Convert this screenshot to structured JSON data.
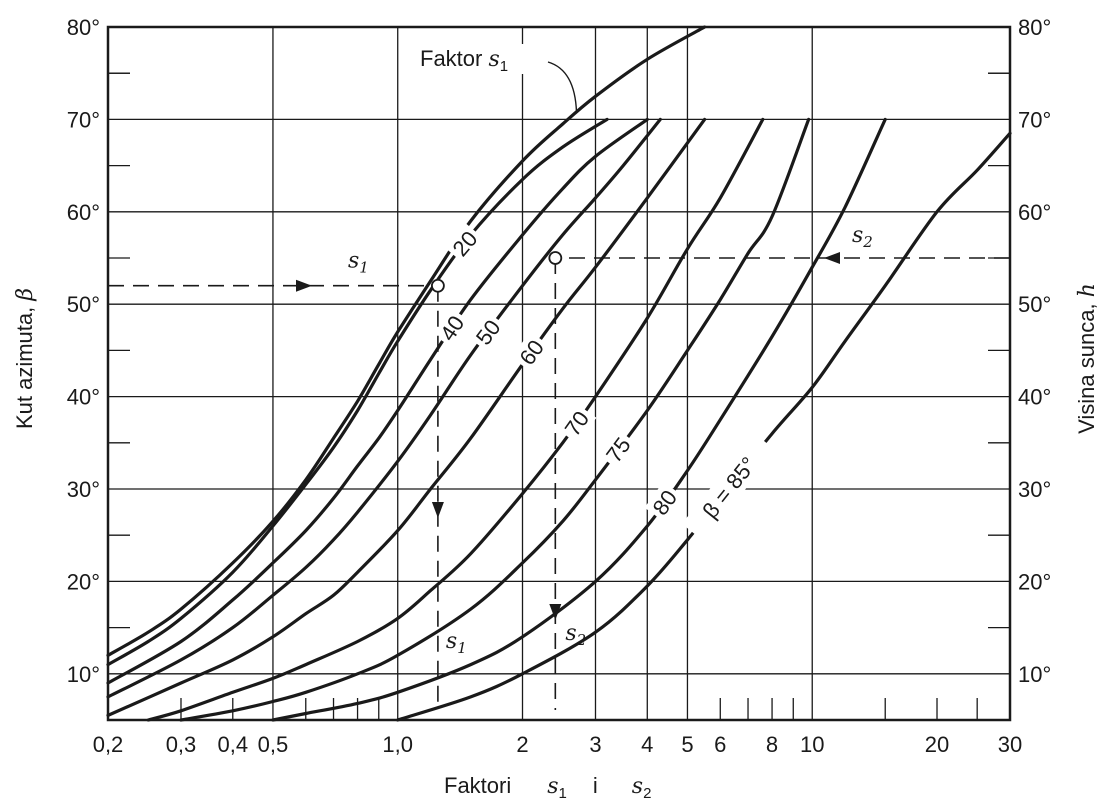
{
  "chart_data": {
    "type": "line",
    "x_scale": "log",
    "xlim": [
      0.2,
      30
    ],
    "ylim": [
      5,
      80
    ],
    "grid": true,
    "x_major_ticks": [
      0.2,
      0.5,
      1.0,
      2,
      3,
      4,
      5,
      10,
      30
    ],
    "x_minor_ticks": [
      0.3,
      0.4,
      0.6,
      0.7,
      0.8,
      0.9,
      6,
      7,
      8,
      9,
      15,
      20,
      25
    ],
    "x_tick_labels": [
      {
        "x": 0.2,
        "label": "0,2"
      },
      {
        "x": 0.3,
        "label": "0,3"
      },
      {
        "x": 0.4,
        "label": "0,4"
      },
      {
        "x": 0.5,
        "label": "0,5"
      },
      {
        "x": 1.0,
        "label": "1,0"
      },
      {
        "x": 2,
        "label": "2"
      },
      {
        "x": 3,
        "label": "3"
      },
      {
        "x": 4,
        "label": "4"
      },
      {
        "x": 5,
        "label": "5"
      },
      {
        "x": 6,
        "label": "6"
      },
      {
        "x": 8,
        "label": "8"
      },
      {
        "x": 10,
        "label": "10"
      },
      {
        "x": 20,
        "label": "20"
      },
      {
        "x": 30,
        "label": "30"
      }
    ],
    "y_ticks": [
      10,
      20,
      30,
      40,
      50,
      60,
      70,
      80
    ],
    "y_tick_labels_left": [
      "10°",
      "20°",
      "30°",
      "40°",
      "50°",
      "60°",
      "70°",
      "80°"
    ],
    "y_tick_labels_right": [
      "10°",
      "20°",
      "30°",
      "40°",
      "50°",
      "60°",
      "70°",
      "80°"
    ],
    "xlabel": {
      "text": "Faktori",
      "s1": "s",
      "sub1": "1",
      "mid": "i",
      "s2": "s",
      "sub2": "2"
    },
    "ylabel_left": {
      "text": "Kut azimuta,",
      "symbol": "β"
    },
    "ylabel_right": {
      "text": "Visina sunca,",
      "symbol": "h"
    },
    "series": [
      {
        "name": "Faktor s1",
        "label_text": "Faktor ",
        "label_sym": "s",
        "label_sub": "1",
        "type": "s1",
        "x": [
          0.2,
          0.25,
          0.3,
          0.4,
          0.5,
          0.6,
          0.7,
          0.8,
          0.9,
          1.0,
          1.2,
          1.5,
          2.0,
          2.5,
          3.0,
          4.0,
          5.5
        ],
        "y": [
          12,
          14.5,
          17,
          22,
          26.5,
          31,
          35.5,
          39.5,
          43.5,
          47,
          52.5,
          59,
          65.5,
          69.5,
          72.5,
          76.5,
          80
        ]
      },
      {
        "name": "20",
        "label": "20",
        "x": [
          0.2,
          0.25,
          0.3,
          0.4,
          0.5,
          0.6,
          0.7,
          0.8,
          0.9,
          1.0,
          1.2,
          1.5,
          2.0,
          2.5,
          3.2
        ],
        "y": [
          11,
          13.5,
          16,
          21,
          26,
          30.5,
          34.5,
          38.5,
          42.5,
          46,
          51.5,
          57.5,
          63.5,
          67,
          70
        ]
      },
      {
        "name": "40",
        "label": "40",
        "x": [
          0.2,
          0.3,
          0.4,
          0.5,
          0.6,
          0.7,
          0.8,
          0.9,
          1.0,
          1.2,
          1.5,
          2.0,
          2.5,
          3.0,
          4.0
        ],
        "y": [
          9,
          13.5,
          18,
          22,
          25.5,
          29,
          32.5,
          35.5,
          38.5,
          44,
          50.5,
          57.5,
          62.5,
          66,
          70
        ]
      },
      {
        "name": "50",
        "label": "50",
        "x": [
          0.2,
          0.3,
          0.4,
          0.5,
          0.6,
          0.7,
          0.8,
          1.0,
          1.2,
          1.5,
          2.0,
          2.5,
          3.0,
          3.5,
          4.3
        ],
        "y": [
          7.5,
          11.5,
          15,
          18.5,
          21.5,
          24.5,
          27.5,
          33,
          38,
          44.5,
          52,
          57.5,
          61.5,
          65,
          70
        ]
      },
      {
        "name": "60",
        "label": "60",
        "x": [
          0.2,
          0.3,
          0.4,
          0.5,
          0.6,
          0.7,
          0.8,
          1.0,
          1.2,
          1.5,
          2.0,
          2.5,
          3.0,
          4.0,
          5.5
        ],
        "y": [
          5.5,
          9,
          11.5,
          14,
          16.5,
          18.5,
          21,
          25.5,
          30,
          35.5,
          43.5,
          49.5,
          54,
          61.5,
          70
        ]
      },
      {
        "name": "70",
        "label": "70",
        "x": [
          0.25,
          0.3,
          0.4,
          0.5,
          0.6,
          0.8,
          1.0,
          1.2,
          1.5,
          2.0,
          2.5,
          3.0,
          4.0,
          5.0,
          6.0,
          7.6
        ],
        "y": [
          5,
          6,
          8,
          9.5,
          11,
          13.5,
          16,
          19,
          23,
          29.5,
          35,
          40,
          48.5,
          56,
          61.5,
          70
        ]
      },
      {
        "name": "75",
        "label": "75",
        "x": [
          0.3,
          0.4,
          0.5,
          0.6,
          0.8,
          1.0,
          1.5,
          2.0,
          2.5,
          3.0,
          4.0,
          5.0,
          6.0,
          7.0,
          8.0,
          9.8
        ],
        "y": [
          5,
          6,
          7,
          8,
          10,
          12,
          17,
          22,
          26.5,
          31,
          38.5,
          45,
          50.5,
          55.5,
          59.5,
          70
        ]
      },
      {
        "name": "80",
        "label": "80",
        "x": [
          0.5,
          0.6,
          0.8,
          1.0,
          1.5,
          2.0,
          3.0,
          4.0,
          5.0,
          6.0,
          8.0,
          10.0,
          12.0,
          15.0
        ],
        "y": [
          5,
          5.7,
          6.8,
          8,
          11,
          14,
          20,
          26,
          32,
          37.5,
          46.5,
          54,
          60.5,
          70
        ]
      },
      {
        "name": "β=85°",
        "label": "β = 85°",
        "x": [
          1.0,
          1.5,
          2.0,
          3.0,
          4.0,
          5.0,
          6.0,
          8.0,
          10.0,
          12.0,
          15.0,
          20.0,
          25.0,
          30.0
        ],
        "y": [
          5,
          7.5,
          10,
          14.5,
          19.5,
          24.5,
          29,
          36,
          41,
          46,
          52,
          60,
          64.5,
          68.5
        ]
      }
    ],
    "annotations": {
      "s1_point": {
        "x": 1.25,
        "y": 52,
        "sym": "s",
        "sub": "1"
      },
      "s2_point": {
        "x": 2.4,
        "y": 55,
        "sym": "s",
        "sub": "2"
      }
    }
  }
}
